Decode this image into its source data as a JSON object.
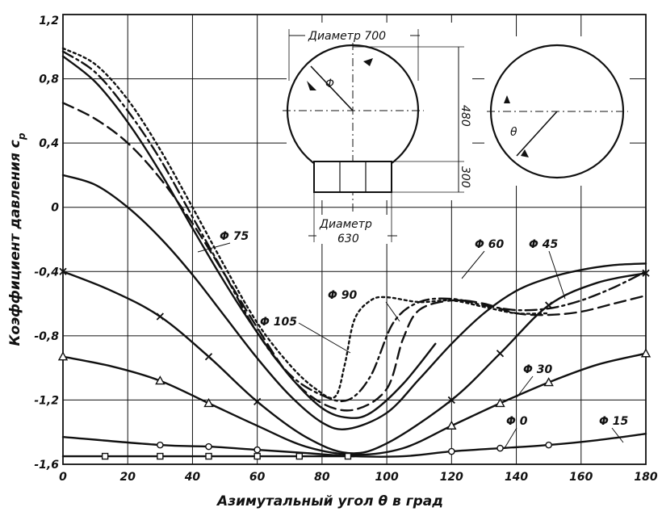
{
  "chart_data": {
    "type": "line",
    "title": "",
    "xlabel": "Азимутальный угол θ в град",
    "ylabel": "Коэффициент давления c",
    "ylabel_sub": "p",
    "xlim": [
      0,
      180
    ],
    "ylim": [
      -1.6,
      1.2
    ],
    "x_ticks": [
      0,
      20,
      40,
      60,
      80,
      100,
      120,
      140,
      160,
      180
    ],
    "x_tick_labels": [
      "0",
      "20",
      "40",
      "60",
      "80",
      "100",
      "120",
      "140",
      "160",
      "180"
    ],
    "y_ticks": [
      1.2,
      0.8,
      0.4,
      0,
      -0.4,
      -0.8,
      -1.2,
      -1.6
    ],
    "y_tick_labels": [
      "1,2",
      "0,8",
      "0,4",
      "0",
      "-0,4",
      "-0,8",
      "-1,2",
      "-1,6"
    ],
    "grid": true,
    "series": [
      {
        "name": "Φ 0",
        "style": "solid",
        "marker": "circle",
        "x": [
          0,
          30,
          45,
          60,
          75,
          90,
          105,
          120,
          135,
          150,
          165,
          180
        ],
        "y": [
          -1.43,
          -1.48,
          -1.49,
          -1.51,
          -1.53,
          -1.55,
          -1.55,
          -1.52,
          -1.5,
          -1.48,
          -1.45,
          -1.41
        ],
        "marker_x": [
          30,
          45,
          60,
          120,
          135,
          150
        ]
      },
      {
        "name": "Φ 15",
        "style": "solid",
        "marker": "square",
        "x": [
          0,
          13,
          30,
          45,
          60,
          73,
          90
        ],
        "y": [
          -1.55,
          -1.55,
          -1.55,
          -1.55,
          -1.55,
          -1.55,
          -1.55
        ],
        "marker_x": [
          13,
          30,
          45,
          60,
          73,
          88
        ]
      },
      {
        "name": "Φ 30",
        "style": "solid",
        "marker": "triangle",
        "x": [
          0,
          15,
          30,
          45,
          60,
          75,
          90,
          105,
          120,
          135,
          150,
          165,
          180
        ],
        "y": [
          -0.93,
          -0.99,
          -1.08,
          -1.22,
          -1.36,
          -1.49,
          -1.54,
          -1.5,
          -1.36,
          -1.22,
          -1.09,
          -0.98,
          -0.91
        ],
        "marker_x": [
          0,
          30,
          45,
          120,
          135,
          150,
          180
        ]
      },
      {
        "name": "Φ 45",
        "style": "solid",
        "marker": "cross",
        "x": [
          0,
          15,
          30,
          45,
          60,
          75,
          88,
          100,
          120,
          135,
          150,
          165,
          180
        ],
        "y": [
          -0.4,
          -0.52,
          -0.68,
          -0.93,
          -1.21,
          -1.43,
          -1.53,
          -1.47,
          -1.2,
          -0.91,
          -0.61,
          -0.47,
          -0.41
        ],
        "marker_x": [
          0,
          30,
          45,
          60,
          120,
          135,
          150,
          180
        ]
      },
      {
        "name": "Φ 60",
        "style": "solid",
        "marker": "none",
        "x": [
          0,
          10,
          20,
          30,
          40,
          50,
          60,
          70,
          80,
          88,
          100,
          110,
          120,
          130,
          140,
          150,
          160,
          170,
          180
        ],
        "y": [
          0.2,
          0.14,
          0.0,
          -0.19,
          -0.42,
          -0.68,
          -0.94,
          -1.17,
          -1.34,
          -1.38,
          -1.28,
          -1.07,
          -0.85,
          -0.66,
          -0.52,
          -0.44,
          -0.39,
          -0.36,
          -0.35
        ]
      },
      {
        "name": "Φ 75",
        "style": "solid",
        "marker": "none",
        "x": [
          0,
          10,
          20,
          30,
          40,
          50,
          60,
          70,
          80,
          88,
          95,
          105,
          115
        ],
        "y": [
          0.94,
          0.78,
          0.53,
          0.22,
          -0.13,
          -0.47,
          -0.78,
          -1.05,
          -1.25,
          -1.31,
          -1.28,
          -1.1,
          -0.85
        ]
      },
      {
        "name": "Φ 90",
        "style": "dashdot",
        "marker": "none",
        "x": [
          0,
          10,
          20,
          30,
          40,
          50,
          60,
          70,
          80,
          88,
          95,
          102,
          110,
          120,
          130,
          140,
          150,
          160,
          170,
          180
        ],
        "y": [
          0.97,
          0.84,
          0.6,
          0.3,
          -0.06,
          -0.42,
          -0.78,
          -1.04,
          -1.17,
          -1.2,
          -1.05,
          -0.72,
          -0.59,
          -0.57,
          -0.61,
          -0.64,
          -0.63,
          -0.58,
          -0.5,
          -0.4
        ]
      },
      {
        "name": "Φ 105",
        "style": "dotted",
        "marker": "none",
        "x": [
          0,
          10,
          20,
          30,
          40,
          50,
          60,
          70,
          78,
          84,
          87,
          90,
          95,
          100,
          110,
          120,
          130,
          140,
          150
        ],
        "y": [
          0.99,
          0.89,
          0.67,
          0.36,
          0.0,
          -0.37,
          -0.72,
          -0.98,
          -1.13,
          -1.18,
          -0.98,
          -0.7,
          -0.58,
          -0.56,
          -0.59,
          -0.58,
          -0.62,
          -0.66,
          -0.66
        ]
      },
      {
        "name": "",
        "style": "dashed",
        "marker": "none",
        "x": [
          0,
          10,
          20,
          30,
          40,
          50,
          60,
          70,
          80,
          90,
          100,
          105,
          110,
          120,
          130,
          140,
          150,
          160,
          170,
          180
        ],
        "y": [
          0.65,
          0.55,
          0.4,
          0.18,
          -0.1,
          -0.42,
          -0.75,
          -1.05,
          -1.22,
          -1.26,
          -1.13,
          -0.82,
          -0.64,
          -0.58,
          -0.6,
          -0.66,
          -0.67,
          -0.65,
          -0.6,
          -0.55
        ]
      }
    ],
    "curve_labels": [
      "Φ 75",
      "Φ 105",
      "Φ 90",
      "Φ 60",
      "Φ 45",
      "Φ 30",
      "Φ 0",
      "Φ 15"
    ],
    "inset": {
      "sphere_diameter_label": "Диаметр 700",
      "phi_symbol": "Φ",
      "dim_480": "480",
      "dim_300": "300",
      "base_diameter_label_line1": "Диаметр",
      "base_diameter_label_line2": "630",
      "theta_symbol": "θ"
    }
  }
}
